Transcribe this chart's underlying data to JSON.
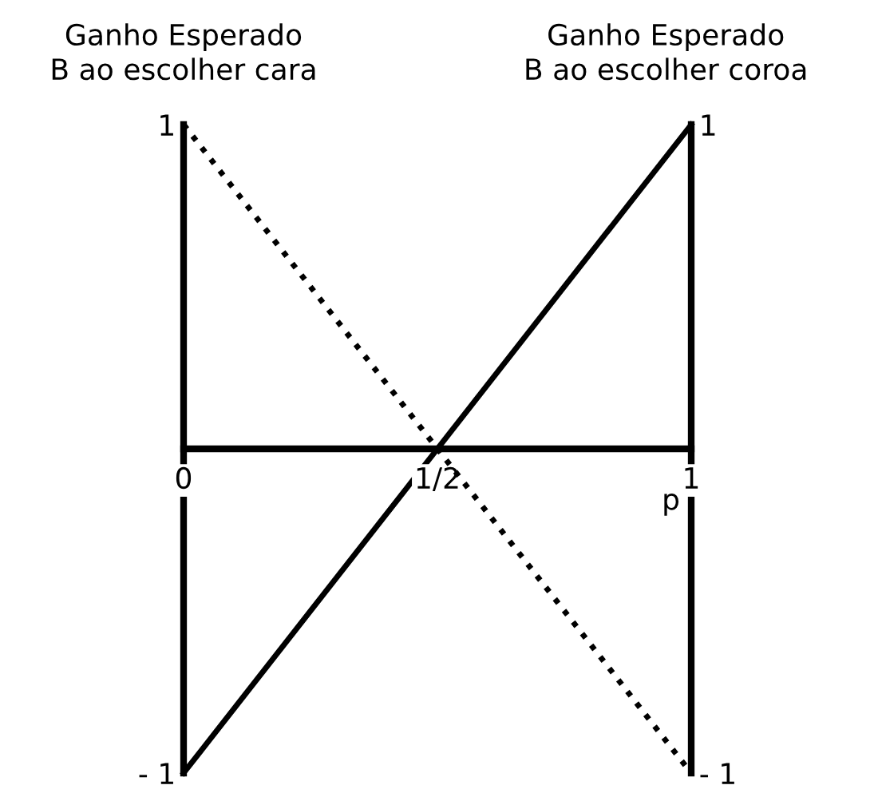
{
  "chart_data": {
    "type": "line",
    "ylabel": "Ganho Esperado\nB ao escolher cara",
    "y2label": "Ganho Esperado\nB ao escolher coroa",
    "xlabel": "p",
    "x": [
      0,
      1
    ],
    "xlim": [
      0,
      1
    ],
    "xticks": [
      {
        "value": 0,
        "label": "0"
      },
      {
        "value": 0.5,
        "label": "1/2"
      },
      {
        "value": 1,
        "label": "1"
      }
    ],
    "ylim": [
      -1,
      1
    ],
    "yticks": [
      {
        "value": -1,
        "label": "- 1"
      },
      {
        "value": 1,
        "label": "1"
      }
    ],
    "y2lim": [
      -1,
      1
    ],
    "y2ticks": [
      {
        "value": -1,
        "label": "- 1"
      },
      {
        "value": 1,
        "label": "1"
      }
    ],
    "series": [
      {
        "color": "#000000",
        "values": [
          1,
          -1
        ],
        "line_style": "dotted"
      },
      {
        "color": "#000000",
        "values": [
          -1,
          1
        ],
        "line_style": "solid",
        "axis": "y2"
      }
    ],
    "grid": false,
    "legend": false,
    "marker": "none"
  }
}
